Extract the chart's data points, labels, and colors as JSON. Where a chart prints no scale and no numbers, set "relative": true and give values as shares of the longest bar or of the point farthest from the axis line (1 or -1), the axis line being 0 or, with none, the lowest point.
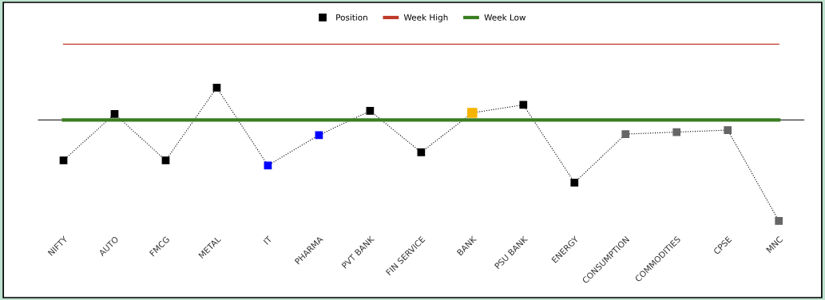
{
  "chart_data": {
    "type": "line",
    "relative": true,
    "legend": "top",
    "categories": [
      "NIFTY",
      "AUTO",
      "FMCG",
      "METAL",
      "IT",
      "PHARMA",
      "PVT BANK",
      "FIN SERVICE",
      "BANK",
      "PSU BANK",
      "ENERGY",
      "CONSUMPTION",
      "COMMODITIES",
      "CPSE",
      "MNC"
    ],
    "series": [
      {
        "name": "Position",
        "color": "#000000",
        "colors": [
          "#000000",
          "#000000",
          "#000000",
          "#000000",
          "#0000ff",
          "#0000ff",
          "#000000",
          "#000000",
          "#f5b400",
          "#000000",
          "#000000",
          "#666666",
          "#666666",
          "#666666",
          "#666666"
        ],
        "marker": "square",
        "line_style": "dotted",
        "values": [
          -0.4,
          0.06,
          -0.4,
          0.32,
          -0.45,
          -0.15,
          0.09,
          -0.32,
          0.07,
          0.15,
          -0.62,
          -0.14,
          -0.12,
          -0.1,
          -1
        ]
      },
      {
        "name": "Week High",
        "color": "#c0392b",
        "line_style": "solid",
        "values": [
          0.75,
          0.75,
          0.75,
          0.75,
          0.75,
          0.75,
          0.75,
          0.75,
          0.75,
          0.75,
          0.75,
          0.75,
          0.75,
          0.75,
          0.75
        ]
      },
      {
        "name": "Week Low",
        "color": "#3a7d22",
        "line_style": "solid",
        "values": [
          0,
          0,
          0,
          0,
          0,
          0,
          0,
          0,
          0,
          0,
          0,
          0,
          0,
          0,
          0
        ]
      }
    ]
  }
}
